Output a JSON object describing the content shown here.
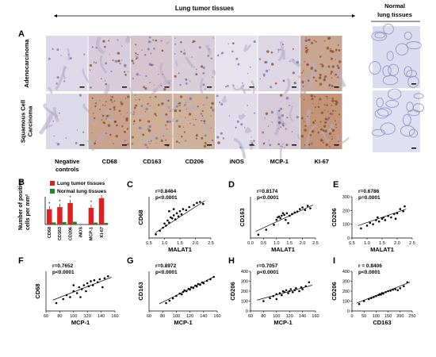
{
  "header": {
    "tumor_title": "Lung tumor tissues",
    "normal_title_line1": "Normal",
    "normal_title_line2": "lung tissues"
  },
  "panel_A": {
    "letter": "A",
    "row_labels": [
      {
        "lines": [
          "Adenocarcinoma"
        ]
      },
      {
        "lines": [
          "Squamous Cell",
          "Carcinoma"
        ]
      }
    ],
    "columns": [
      {
        "lines": [
          "Negative",
          "controls"
        ]
      },
      {
        "lines": [
          "CD68"
        ]
      },
      {
        "lines": [
          "CD163"
        ]
      },
      {
        "lines": [
          "CD206"
        ]
      },
      {
        "lines": [
          "iNOS"
        ]
      },
      {
        "lines": [
          "MCP-1"
        ]
      },
      {
        "lines": [
          "KI-67"
        ]
      }
    ],
    "tiles": [
      [
        "#ddd9e9",
        "#d9ccdc",
        "#d6c4cf",
        "#d8cdd8",
        "#e6e3ee",
        "#ddd6e4",
        "#c9a692"
      ],
      [
        "#dcd9e8",
        "#c9a38d",
        "#cfae98",
        "#cfb29c",
        "#e1dcea",
        "#d8cbd9",
        "#c49478"
      ]
    ],
    "stain": [
      [
        0.0,
        0.35,
        0.45,
        0.35,
        0.1,
        0.25,
        0.9
      ],
      [
        0.0,
        0.7,
        0.65,
        0.6,
        0.15,
        0.35,
        0.95
      ]
    ],
    "normal_tiles": [
      "#dcdcf0",
      "#dfe0f2"
    ]
  },
  "panel_B": {
    "letter": "B",
    "chart_data": {
      "type": "bar",
      "ylabel": "Number of positive cells per mm²",
      "categories": [
        "CD68",
        "CD163",
        "CD206",
        "iNOS",
        "MCP-1",
        "KI-67"
      ],
      "series": [
        {
          "name": "Lung tumor tissues",
          "color": "#e02020",
          "values": [
            110,
            125,
            155,
            0,
            120,
            190
          ]
        },
        {
          "name": "Normal lung tissues",
          "color": "#1e8a1e",
          "values": [
            15,
            18,
            20,
            0,
            14,
            12
          ]
        }
      ],
      "significance": "*",
      "ylim": [
        0,
        200
      ]
    }
  },
  "scatter_panels": [
    {
      "id": "C",
      "stat_r": "r=0.8464",
      "stat_p": "p<0.0001",
      "xlabel": "MALAT1",
      "ylabel": "CD68",
      "chart_data": {
        "type": "scatter",
        "xlim": [
          0.5,
          2.5
        ],
        "ylim": [
          0,
          200
        ],
        "xticks": [
          "0.5",
          "1.0",
          "1.5",
          "2.0",
          "2.5"
        ],
        "yticks": [],
        "points": [
          [
            0.72,
            18
          ],
          [
            0.85,
            35
          ],
          [
            0.95,
            50
          ],
          [
            1.0,
            70
          ],
          [
            1.05,
            60
          ],
          [
            1.1,
            85
          ],
          [
            1.15,
            75
          ],
          [
            1.2,
            100
          ],
          [
            1.25,
            95
          ],
          [
            1.3,
            110
          ],
          [
            1.35,
            90
          ],
          [
            1.4,
            120
          ],
          [
            1.45,
            105
          ],
          [
            1.5,
            130
          ],
          [
            1.55,
            115
          ],
          [
            1.6,
            140
          ],
          [
            1.7,
            135
          ],
          [
            1.8,
            150
          ],
          [
            1.95,
            160
          ],
          [
            2.05,
            170
          ],
          [
            2.15,
            175
          ],
          [
            2.25,
            165
          ],
          [
            1.3,
            140
          ],
          [
            1.15,
            130
          ]
        ],
        "fit": [
          [
            0.7,
            25
          ],
          [
            2.3,
            180
          ]
        ]
      }
    },
    {
      "id": "D",
      "stat_r": "r=0.8174",
      "stat_p": "p<0.0001",
      "xlabel": "MALAT1",
      "ylabel": "CD163",
      "chart_data": {
        "type": "scatter",
        "xlim": [
          0.0,
          2.5
        ],
        "ylim": [
          0,
          250
        ],
        "xticks": [
          "0.0",
          "0.5",
          "1.0",
          "1.5",
          "2.0",
          "2.5"
        ],
        "yticks": [],
        "points": [
          [
            0.3,
            20
          ],
          [
            0.6,
            50
          ],
          [
            0.9,
            80
          ],
          [
            1.0,
            110
          ],
          [
            1.05,
            125
          ],
          [
            1.1,
            130
          ],
          [
            1.15,
            120
          ],
          [
            1.2,
            135
          ],
          [
            1.3,
            140
          ],
          [
            1.35,
            110
          ],
          [
            1.4,
            150
          ],
          [
            1.5,
            135
          ],
          [
            1.6,
            145
          ],
          [
            1.7,
            155
          ],
          [
            1.8,
            160
          ],
          [
            1.9,
            175
          ],
          [
            2.0,
            185
          ],
          [
            2.1,
            170
          ],
          [
            2.2,
            195
          ],
          [
            2.3,
            180
          ],
          [
            1.45,
            90
          ],
          [
            1.25,
            150
          ]
        ],
        "fit": [
          [
            0.2,
            40
          ],
          [
            2.4,
            200
          ]
        ]
      }
    },
    {
      "id": "E",
      "stat_r": "r=0.6786",
      "stat_p": "p=0.0001",
      "xlabel": "MALAT1",
      "ylabel": "CD206",
      "chart_data": {
        "type": "scatter",
        "xlim": [
          0.5,
          2.5
        ],
        "ylim": [
          0,
          300
        ],
        "xticks": [
          "0.5",
          "1.0",
          "1.5",
          "2.0",
          "2.5"
        ],
        "yticks": [
          "0",
          "100",
          "200",
          "300"
        ],
        "points": [
          [
            0.8,
            70
          ],
          [
            1.0,
            90
          ],
          [
            1.1,
            110
          ],
          [
            1.2,
            100
          ],
          [
            1.3,
            130
          ],
          [
            1.4,
            120
          ],
          [
            1.5,
            140
          ],
          [
            1.55,
            150
          ],
          [
            1.6,
            130
          ],
          [
            1.7,
            160
          ],
          [
            1.8,
            150
          ],
          [
            1.9,
            175
          ],
          [
            2.0,
            180
          ],
          [
            2.1,
            210
          ],
          [
            2.2,
            195
          ],
          [
            2.25,
            230
          ],
          [
            1.35,
            150
          ],
          [
            1.95,
            140
          ]
        ],
        "fit": [
          [
            0.7,
            90
          ],
          [
            2.3,
            210
          ]
        ]
      }
    },
    {
      "id": "F",
      "stat_r": "r=0.7652",
      "stat_p": "p<0.0001",
      "xlabel": "MCP-1",
      "ylabel": "CD68",
      "chart_data": {
        "type": "scatter",
        "xlim": [
          60,
          160
        ],
        "ylim": [
          0,
          200
        ],
        "xticks": [
          "60",
          "80",
          "100",
          "120",
          "140",
          "160"
        ],
        "yticks": [],
        "points": [
          [
            75,
            40
          ],
          [
            85,
            60
          ],
          [
            90,
            80
          ],
          [
            95,
            70
          ],
          [
            100,
            100
          ],
          [
            105,
            90
          ],
          [
            108,
            120
          ],
          [
            112,
            110
          ],
          [
            115,
            130
          ],
          [
            118,
            100
          ],
          [
            120,
            140
          ],
          [
            122,
            125
          ],
          [
            125,
            150
          ],
          [
            128,
            130
          ],
          [
            130,
            155
          ],
          [
            135,
            145
          ],
          [
            138,
            160
          ],
          [
            142,
            120
          ],
          [
            145,
            165
          ],
          [
            150,
            175
          ],
          [
            110,
            70
          ],
          [
            100,
            130
          ]
        ],
        "fit": [
          [
            70,
            55
          ],
          [
            155,
            170
          ]
        ]
      }
    },
    {
      "id": "G",
      "stat_r": "r=0.8972",
      "stat_p": "p<0.0001",
      "xlabel": "MCP-1",
      "ylabel": "CD163",
      "chart_data": {
        "type": "scatter",
        "xlim": [
          60,
          160
        ],
        "ylim": [
          0,
          250
        ],
        "xticks": [
          "60",
          "80",
          "100",
          "120",
          "140",
          "160"
        ],
        "yticks": [],
        "points": [
          [
            85,
            50
          ],
          [
            90,
            65
          ],
          [
            95,
            80
          ],
          [
            100,
            95
          ],
          [
            105,
            110
          ],
          [
            108,
            105
          ],
          [
            110,
            120
          ],
          [
            112,
            130
          ],
          [
            115,
            125
          ],
          [
            118,
            140
          ],
          [
            120,
            135
          ],
          [
            122,
            150
          ],
          [
            125,
            145
          ],
          [
            128,
            160
          ],
          [
            130,
            155
          ],
          [
            132,
            170
          ],
          [
            135,
            165
          ],
          [
            138,
            180
          ],
          [
            140,
            175
          ],
          [
            145,
            190
          ],
          [
            150,
            200
          ],
          [
            155,
            215
          ]
        ],
        "fit": [
          [
            75,
            45
          ],
          [
            155,
            215
          ]
        ]
      }
    },
    {
      "id": "H",
      "stat_r": "r=0.7057",
      "stat_p": "p<0.0001",
      "xlabel": "MCP-1",
      "ylabel": "CD206",
      "chart_data": {
        "type": "scatter",
        "xlim": [
          60,
          160
        ],
        "ylim": [
          0,
          400
        ],
        "xticks": [
          "60",
          "80",
          "100",
          "120",
          "140",
          "160"
        ],
        "yticks": [
          "0",
          "100",
          "200",
          "300",
          "400"
        ],
        "points": [
          [
            80,
            100
          ],
          [
            90,
            130
          ],
          [
            95,
            150
          ],
          [
            100,
            170
          ],
          [
            105,
            180
          ],
          [
            108,
            160
          ],
          [
            110,
            200
          ],
          [
            112,
            190
          ],
          [
            115,
            210
          ],
          [
            118,
            180
          ],
          [
            120,
            200
          ],
          [
            122,
            220
          ],
          [
            125,
            190
          ],
          [
            128,
            210
          ],
          [
            130,
            230
          ],
          [
            135,
            200
          ],
          [
            138,
            240
          ],
          [
            140,
            220
          ],
          [
            145,
            250
          ],
          [
            150,
            290
          ],
          [
            100,
            120
          ]
        ],
        "fit": [
          [
            70,
            110
          ],
          [
            155,
            260
          ]
        ]
      }
    },
    {
      "id": "I",
      "stat_r": "r = 0.8406",
      "stat_p": "p<0.0001",
      "xlabel": "CD163",
      "ylabel": "CD206",
      "chart_data": {
        "type": "scatter",
        "xlim": [
          0,
          250
        ],
        "ylim": [
          0,
          400
        ],
        "xticks": [
          "0",
          "50",
          "100",
          "150",
          "200",
          "250"
        ],
        "yticks": [
          "0",
          "100",
          "200",
          "300",
          "400"
        ],
        "points": [
          [
            30,
            70
          ],
          [
            50,
            100
          ],
          [
            70,
            120
          ],
          [
            80,
            130
          ],
          [
            90,
            140
          ],
          [
            100,
            150
          ],
          [
            110,
            160
          ],
          [
            115,
            170
          ],
          [
            120,
            165
          ],
          [
            125,
            180
          ],
          [
            130,
            175
          ],
          [
            140,
            190
          ],
          [
            150,
            200
          ],
          [
            160,
            205
          ],
          [
            170,
            215
          ],
          [
            180,
            220
          ],
          [
            190,
            210
          ],
          [
            200,
            230
          ],
          [
            215,
            250
          ],
          [
            230,
            290
          ]
        ],
        "fit": [
          [
            20,
            80
          ],
          [
            240,
            290
          ]
        ]
      }
    }
  ]
}
